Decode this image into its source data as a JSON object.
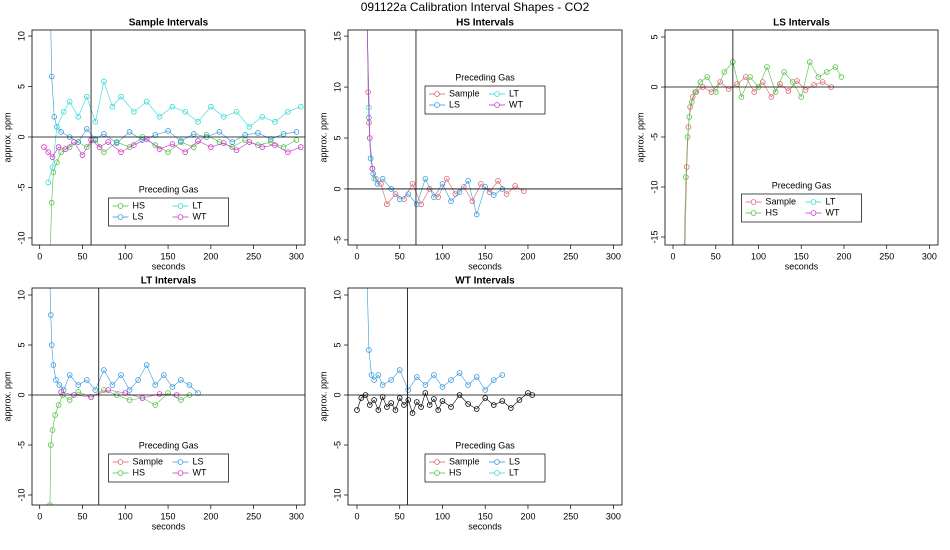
{
  "title": "091122a   Calibration Interval Shapes - CO2",
  "chart_data": [
    {
      "type": "line",
      "title": "Sample Intervals",
      "x_label": "seconds",
      "y_label": "approx. ppm",
      "xlim": [
        -9,
        310
      ],
      "xticks": [
        0,
        50,
        100,
        150,
        200,
        250,
        300
      ],
      "ylim": [
        -10.7,
        10.6
      ],
      "yticks": [
        -10,
        -5,
        0,
        5,
        10
      ],
      "vline": 60,
      "hline": 0,
      "legend_title": "Preceding Gas",
      "series": [
        {
          "name": "HS",
          "color": "#50c040",
          "x": [
            12,
            14,
            16,
            20,
            25,
            35,
            45,
            55,
            65,
            75,
            90,
            105,
            120,
            135,
            150,
            165,
            180,
            195,
            210,
            225,
            240,
            255,
            270,
            285,
            300
          ],
          "values": [
            -12,
            -6.5,
            -3.5,
            -2.5,
            -1.5,
            -1,
            -0.5,
            -1,
            -0.3,
            -1.5,
            -0.5,
            -1,
            0,
            -0.8,
            -1.5,
            -0.5,
            -1,
            0.2,
            -0.5,
            -1,
            -0.3,
            -0.8,
            -0.5,
            -1,
            -0.3
          ]
        },
        {
          "name": "LS",
          "color": "#3399dd",
          "x": [
            12,
            14,
            17,
            20,
            25,
            35,
            45,
            55,
            65,
            75,
            90,
            105,
            120,
            135,
            150,
            165,
            180,
            195,
            210,
            225,
            240,
            255,
            270,
            285,
            300
          ],
          "values": [
            15,
            6,
            2,
            1,
            0.5,
            0,
            -0.5,
            0.8,
            -0.2,
            0.3,
            -0.6,
            0.5,
            -0.3,
            0.2,
            0.6,
            -0.4,
            0.3,
            0,
            0.5,
            -0.5,
            0.2,
            0.4,
            -0.2,
            0.3,
            0.5
          ]
        },
        {
          "name": "LT",
          "color": "#33d8d8",
          "x": [
            10,
            15,
            20,
            28,
            35,
            45,
            55,
            65,
            75,
            85,
            95,
            110,
            125,
            140,
            155,
            170,
            185,
            200,
            215,
            230,
            245,
            260,
            275,
            290,
            305
          ],
          "values": [
            -4.5,
            -3,
            1,
            2.5,
            3.5,
            2,
            4,
            1.5,
            5.5,
            3,
            4,
            2.5,
            3.5,
            2,
            3,
            2.5,
            1.5,
            3,
            2,
            2.5,
            1,
            2,
            1.5,
            2.5,
            3
          ]
        },
        {
          "name": "WT",
          "color": "#cc33cc",
          "x": [
            5,
            10,
            15,
            22,
            30,
            40,
            50,
            60,
            70,
            80,
            95,
            110,
            125,
            140,
            155,
            170,
            185,
            200,
            215,
            230,
            245,
            260,
            275,
            290,
            305
          ],
          "values": [
            -1,
            -1.5,
            -2,
            -1,
            -1.2,
            -0.5,
            -1.8,
            -0.3,
            -1,
            -0.5,
            -1.5,
            -0.8,
            -0.2,
            -1.2,
            -0.7,
            -1.5,
            -0.4,
            -1,
            -0.6,
            -1.3,
            -0.5,
            -1,
            -0.8,
            -1.5,
            -1
          ]
        }
      ]
    },
    {
      "type": "line",
      "title": "HS Intervals",
      "x_label": "seconds",
      "y_label": "approx. ppm",
      "xlim": [
        -10.5,
        310
      ],
      "xticks": [
        0,
        50,
        100,
        150,
        200,
        250,
        300
      ],
      "ylim": [
        -5.5,
        15.6
      ],
      "yticks": [
        -5,
        0,
        5,
        10,
        15
      ],
      "vline": 69,
      "hline": 0,
      "legend_title": "Preceding Gas",
      "series": [
        {
          "name": "Sample",
          "color": "#e06070",
          "x": [
            12,
            13,
            14,
            16,
            18,
            22,
            28,
            35,
            45,
            55,
            65,
            75,
            85,
            95,
            105,
            115,
            125,
            135,
            145,
            155,
            165,
            175,
            185,
            195
          ],
          "values": [
            16,
            9.5,
            6.5,
            3,
            2,
            1,
            0.5,
            -1.5,
            -0.5,
            -1,
            0.5,
            -1.5,
            0,
            -0.8,
            1,
            -0.5,
            0.2,
            -1.2,
            0.5,
            -0.3,
            0.8,
            -0.5,
            0.3,
            -0.2
          ]
        },
        {
          "name": "LS",
          "color": "#3399dd",
          "x": [
            12,
            14,
            16,
            19,
            24,
            30,
            40,
            50,
            60,
            70,
            80,
            90,
            100,
            110,
            120,
            130,
            140,
            150,
            160,
            170
          ],
          "values": [
            16,
            7,
            3,
            1.5,
            0.5,
            1,
            0,
            -1,
            -0.5,
            -1.5,
            1,
            -0.8,
            0.5,
            -1.2,
            -0.3,
            0.8,
            -2.5,
            0.2,
            -0.6,
            0
          ]
        },
        {
          "name": "LT",
          "color": "#33d8d8",
          "x": [
            12,
            14,
            16,
            20
          ],
          "values": [
            16,
            8,
            3,
            1
          ]
        },
        {
          "name": "WT",
          "color": "#cc33cc",
          "x": [
            12,
            15,
            18
          ],
          "values": [
            16,
            5,
            2
          ]
        }
      ]
    },
    {
      "type": "line",
      "title": "LS Intervals",
      "x_label": "seconds",
      "y_label": "approx. ppm",
      "xlim": [
        -9.4,
        310
      ],
      "xticks": [
        0,
        50,
        100,
        150,
        200,
        250,
        300
      ],
      "ylim": [
        -15.8,
        5.7
      ],
      "yticks": [
        -15,
        -10,
        -5,
        0,
        5
      ],
      "vline": 70,
      "hline": 0,
      "legend_title": "Preceding Gas",
      "series": [
        {
          "name": "Sample",
          "color": "#e06070",
          "x": [
            14,
            16,
            18,
            20,
            23,
            27,
            35,
            45,
            55,
            65,
            75,
            85,
            95,
            105,
            115,
            125,
            135,
            145,
            155,
            165,
            175,
            185
          ],
          "values": [
            -16,
            -8,
            -4,
            -2,
            -1,
            -0.5,
            0,
            -0.5,
            0.5,
            -0.2,
            0.3,
            1,
            -0.5,
            0.5,
            -1,
            0.3,
            -0.4,
            0.6,
            -0.3,
            0.2,
            0.5,
            0
          ]
        },
        {
          "name": "HS",
          "color": "#50c040",
          "x": [
            13,
            15,
            17,
            19,
            22,
            26,
            32,
            40,
            50,
            60,
            70,
            80,
            90,
            100,
            110,
            120,
            130,
            140,
            150,
            160,
            170,
            180,
            190,
            197
          ],
          "values": [
            -16,
            -9,
            -5,
            -3,
            -1.5,
            -0.5,
            0.5,
            1,
            -0.5,
            1.5,
            2.5,
            -1,
            1,
            0,
            2,
            -0.5,
            1.5,
            0.5,
            -1,
            2.5,
            1,
            1.5,
            2,
            1
          ]
        },
        {
          "name": "LT",
          "color": "#33d8d8",
          "x": [],
          "values": []
        },
        {
          "name": "WT",
          "color": "#cc33cc",
          "x": [],
          "values": []
        }
      ]
    },
    {
      "type": "line",
      "title": "LT Intervals",
      "x_label": "seconds",
      "y_label": "approx. ppm",
      "xlim": [
        -9,
        310
      ],
      "xticks": [
        0,
        50,
        100,
        150,
        200,
        250,
        300
      ],
      "ylim": [
        -11,
        10.7
      ],
      "yticks": [
        -10,
        -5,
        0,
        5,
        10
      ],
      "vline": 69,
      "hline": 0,
      "legend_title": "Preceding Gas",
      "series": [
        {
          "name": "Sample",
          "color": "#e06070",
          "x": [],
          "values": []
        },
        {
          "name": "HS",
          "color": "#50c040",
          "x": [
            12,
            13,
            15,
            18,
            22,
            27,
            35,
            45,
            60,
            75,
            90,
            105,
            120,
            135,
            150,
            165,
            175
          ],
          "values": [
            -11,
            -5,
            -3.5,
            -2,
            -1,
            0,
            -0.5,
            0.3,
            -0.2,
            0.5,
            0,
            -0.5,
            -0.3,
            -1,
            0.2,
            -0.5,
            0
          ]
        },
        {
          "name": "LS",
          "color": "#3399dd",
          "x": [
            12,
            13,
            14,
            16,
            19,
            23,
            28,
            35,
            45,
            55,
            65,
            75,
            85,
            95,
            105,
            115,
            125,
            135,
            145,
            155,
            165,
            175,
            185
          ],
          "values": [
            11,
            8,
            5,
            3,
            1.5,
            1,
            0.5,
            2,
            1,
            1.5,
            0.5,
            2.5,
            1,
            2,
            0.5,
            1.5,
            3,
            1,
            2,
            0.8,
            1.5,
            1,
            0.2
          ]
        },
        {
          "name": "WT",
          "color": "#cc33cc",
          "x": [
            25,
            40,
            60,
            80,
            100,
            120,
            140,
            160
          ],
          "values": [
            0.3,
            0,
            -0.2,
            0.5,
            0.2,
            -0.3,
            0.1,
            0
          ]
        }
      ]
    },
    {
      "type": "line",
      "title": "WT Intervals",
      "x_label": "seconds",
      "y_label": "approx. ppm",
      "xlim": [
        -10.5,
        310
      ],
      "xticks": [
        0,
        50,
        100,
        150,
        200,
        250,
        300
      ],
      "ylim": [
        -11,
        10.7
      ],
      "yticks": [
        -10,
        -5,
        0,
        5,
        10
      ],
      "vline": 59,
      "hline": 0,
      "legend_title": "Preceding Gas",
      "series": [
        {
          "name": "Sample",
          "color": "#e06070",
          "x": [],
          "values": []
        },
        {
          "name": "HS",
          "color": "#50c040",
          "x": [],
          "values": []
        },
        {
          "name": "LS",
          "color": "#3399dd",
          "x": [
            12,
            14,
            17,
            20,
            25,
            30,
            40,
            50,
            60,
            70,
            80,
            90,
            100,
            110,
            120,
            130,
            140,
            150,
            160,
            170
          ],
          "values": [
            11,
            4.5,
            2,
            1.5,
            2,
            1,
            1.5,
            2.5,
            0.5,
            1.8,
            1,
            2,
            0.8,
            1.5,
            2.2,
            1,
            1.8,
            0.5,
            1.5,
            2
          ]
        },
        {
          "name": "LT",
          "color": "#33d8d8",
          "x": [],
          "values": []
        },
        {
          "color": "#000000",
          "x": [
            0,
            5,
            10,
            15,
            20,
            25,
            30,
            35,
            40,
            45,
            50,
            55,
            60,
            65,
            70,
            75,
            80,
            85,
            90,
            95,
            100,
            110,
            120,
            130,
            140,
            150,
            160,
            170,
            180,
            190,
            200,
            205
          ],
          "values": [
            -1.5,
            -0.3,
            0,
            -1,
            -0.5,
            -1.5,
            -0.2,
            -1.2,
            -0.8,
            -1.5,
            -0.3,
            -1,
            -0.5,
            -1.8,
            -0.7,
            -1.2,
            0.2,
            -1,
            -0.4,
            -1.5,
            -0.6,
            -1.2,
            0,
            -0.9,
            -1.4,
            -0.3,
            -1,
            -0.6,
            -1.3,
            -0.5,
            0.2,
            0
          ]
        }
      ]
    }
  ]
}
